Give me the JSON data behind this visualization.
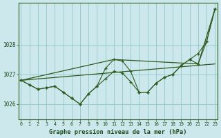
{
  "title": "Graphe pression niveau de la mer (hPa)",
  "background_color": "#cce8ec",
  "grid_color": "#99cccc",
  "line_color": "#2d5a1e",
  "x_labels": [
    "0",
    "1",
    "2",
    "3",
    "4",
    "5",
    "6",
    "7",
    "8",
    "9",
    "10",
    "11",
    "12",
    "13",
    "14",
    "15",
    "16",
    "17",
    "18",
    "19",
    "20",
    "21",
    "22",
    "23"
  ],
  "y_ticks": [
    1026,
    1027,
    1028
  ],
  "ylim": [
    1025.5,
    1029.4
  ],
  "xlim": [
    -0.3,
    23.3
  ],
  "series_main": [
    1026.8,
    1026.65,
    1026.5,
    1026.55,
    1026.6,
    1026.4,
    1026.2,
    1026.0,
    1026.35,
    1026.6,
    1026.85,
    1027.1,
    1027.05,
    1026.75,
    1026.4,
    1026.4,
    1026.7,
    1026.9,
    1027.0,
    1027.3,
    1027.5,
    1027.7,
    1028.1,
    1029.2
  ],
  "series_alt": [
    1026.8,
    1026.65,
    1026.5,
    1026.55,
    1026.6,
    1026.4,
    1026.2,
    1026.0,
    1026.35,
    1026.6,
    1027.2,
    1027.5,
    1027.45,
    1027.1,
    1026.4,
    1026.4,
    1026.7,
    1026.9,
    1027.0,
    1027.3,
    1027.5,
    1027.35,
    1028.1,
    1029.2
  ],
  "trend1_x": [
    0,
    23
  ],
  "trend1_y": [
    1026.8,
    1027.35
  ],
  "trend2_x": [
    0,
    11,
    21,
    23
  ],
  "trend2_y": [
    1026.8,
    1027.5,
    1027.35,
    1029.2
  ]
}
